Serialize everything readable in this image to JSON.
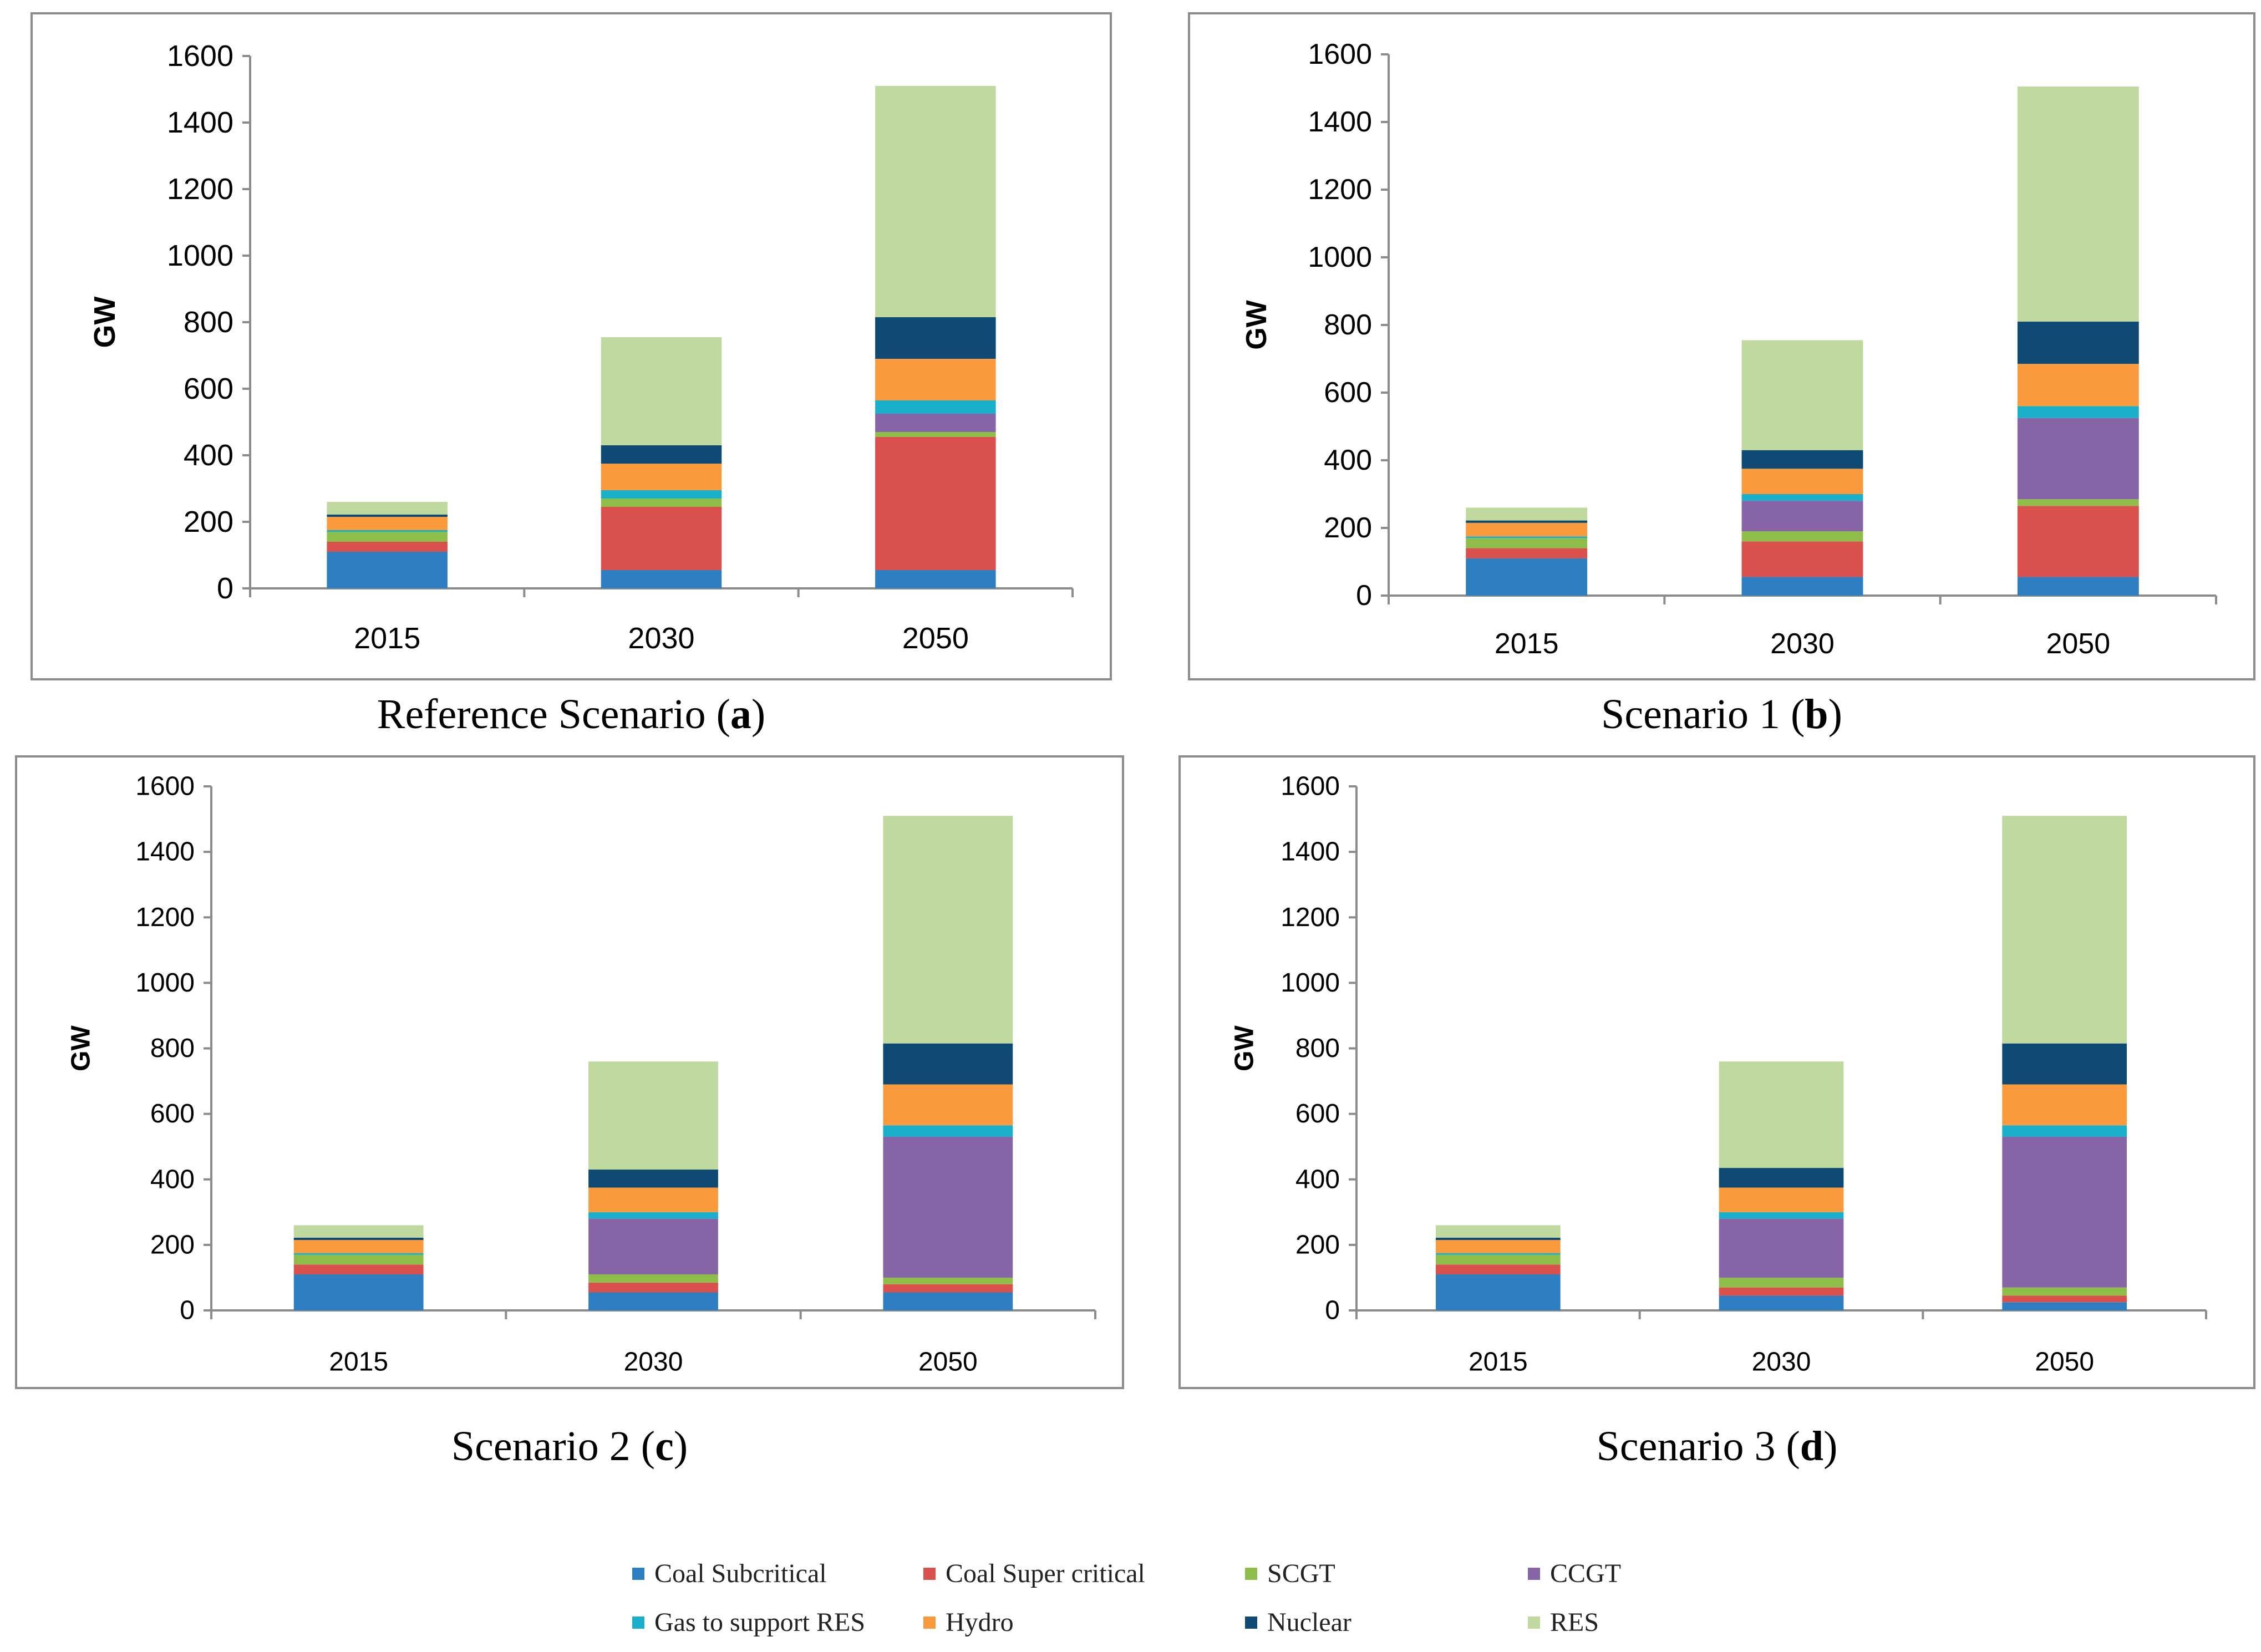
{
  "chart_data": [
    {
      "type": "bar",
      "stacked": true,
      "panel": "a",
      "caption_prefix": "Reference Scenario (",
      "caption_letter": "a",
      "caption_suffix": ")",
      "ylabel": "GW",
      "ylim": [
        0,
        1600
      ],
      "yticks": [
        "0",
        "200",
        "400",
        "600",
        "800",
        "1000",
        "1200",
        "1400",
        "1600"
      ],
      "categories": [
        "2015",
        "2030",
        "2050"
      ],
      "series": [
        {
          "name": "Coal Subcritical",
          "values": [
            110,
            55,
            55
          ]
        },
        {
          "name": "Coal Super critical",
          "values": [
            30,
            190,
            400
          ]
        },
        {
          "name": "SCGT",
          "values": [
            30,
            25,
            15
          ]
        },
        {
          "name": "CCGT",
          "values": [
            0,
            0,
            55
          ]
        },
        {
          "name": "Gas to support RES",
          "values": [
            5,
            25,
            40
          ]
        },
        {
          "name": "Hydro",
          "values": [
            40,
            80,
            125
          ]
        },
        {
          "name": "Nuclear",
          "values": [
            7,
            55,
            125
          ]
        },
        {
          "name": "RES",
          "values": [
            38,
            325,
            695
          ]
        }
      ]
    },
    {
      "type": "bar",
      "stacked": true,
      "panel": "b",
      "caption_prefix": "Scenario 1 (",
      "caption_letter": "b",
      "caption_suffix": ")",
      "ylabel": "GW",
      "ylim": [
        0,
        1600
      ],
      "yticks": [
        "0",
        "200",
        "400",
        "600",
        "800",
        "1000",
        "1200",
        "1400",
        "1600"
      ],
      "categories": [
        "2015",
        "2030",
        "2050"
      ],
      "series": [
        {
          "name": "Coal Subcritical",
          "values": [
            110,
            55,
            55
          ]
        },
        {
          "name": "Coal Super critical",
          "values": [
            30,
            105,
            210
          ]
        },
        {
          "name": "SCGT",
          "values": [
            30,
            30,
            20
          ]
        },
        {
          "name": "CCGT",
          "values": [
            0,
            90,
            240
          ]
        },
        {
          "name": "Gas to support RES",
          "values": [
            5,
            20,
            35
          ]
        },
        {
          "name": "Hydro",
          "values": [
            40,
            75,
            125
          ]
        },
        {
          "name": "Nuclear",
          "values": [
            7,
            55,
            125
          ]
        },
        {
          "name": "RES",
          "values": [
            38,
            325,
            695
          ]
        }
      ]
    },
    {
      "type": "bar",
      "stacked": true,
      "panel": "c",
      "caption_prefix": "Scenario 2 (",
      "caption_letter": "c",
      "caption_suffix": ")",
      "ylabel": "GW",
      "ylim": [
        0,
        1600
      ],
      "yticks": [
        "0",
        "200",
        "400",
        "600",
        "800",
        "1000",
        "1200",
        "1400",
        "1600"
      ],
      "categories": [
        "2015",
        "2030",
        "2050"
      ],
      "series": [
        {
          "name": "Coal Subcritical",
          "values": [
            110,
            55,
            55
          ]
        },
        {
          "name": "Coal Super critical",
          "values": [
            30,
            30,
            25
          ]
        },
        {
          "name": "SCGT",
          "values": [
            30,
            25,
            20
          ]
        },
        {
          "name": "CCGT",
          "values": [
            0,
            170,
            430
          ]
        },
        {
          "name": "Gas to support RES",
          "values": [
            5,
            20,
            35
          ]
        },
        {
          "name": "Hydro",
          "values": [
            40,
            75,
            125
          ]
        },
        {
          "name": "Nuclear",
          "values": [
            7,
            55,
            125
          ]
        },
        {
          "name": "RES",
          "values": [
            38,
            330,
            695
          ]
        }
      ]
    },
    {
      "type": "bar",
      "stacked": true,
      "panel": "d",
      "caption_prefix": "Scenario 3 (",
      "caption_letter": "d",
      "caption_suffix": ")",
      "ylabel": "GW",
      "ylim": [
        0,
        1600
      ],
      "yticks": [
        "0",
        "200",
        "400",
        "600",
        "800",
        "1000",
        "1200",
        "1400",
        "1600"
      ],
      "categories": [
        "2015",
        "2030",
        "2050"
      ],
      "series": [
        {
          "name": "Coal Subcritical",
          "values": [
            110,
            45,
            25
          ]
        },
        {
          "name": "Coal Super critical",
          "values": [
            30,
            25,
            20
          ]
        },
        {
          "name": "SCGT",
          "values": [
            30,
            30,
            25
          ]
        },
        {
          "name": "CCGT",
          "values": [
            0,
            180,
            460
          ]
        },
        {
          "name": "Gas to support RES",
          "values": [
            5,
            20,
            35
          ]
        },
        {
          "name": "Hydro",
          "values": [
            40,
            75,
            125
          ]
        },
        {
          "name": "Nuclear",
          "values": [
            7,
            60,
            125
          ]
        },
        {
          "name": "RES",
          "values": [
            38,
            325,
            695
          ]
        }
      ]
    }
  ],
  "legend": {
    "items": [
      {
        "label": "Coal Subcritical",
        "color": "#2e7fc1"
      },
      {
        "label": "Coal Super critical",
        "color": "#d9504c"
      },
      {
        "label": "SCGT",
        "color": "#8ebd4a"
      },
      {
        "label": "CCGT",
        "color": "#8764a6"
      },
      {
        "label": "Gas to support RES",
        "color": "#1ab0cc"
      },
      {
        "label": "Hydro",
        "color": "#fb9a3c"
      },
      {
        "label": "Nuclear",
        "color": "#0e4a74"
      },
      {
        "label": "RES",
        "color": "#bfd99e"
      }
    ]
  }
}
